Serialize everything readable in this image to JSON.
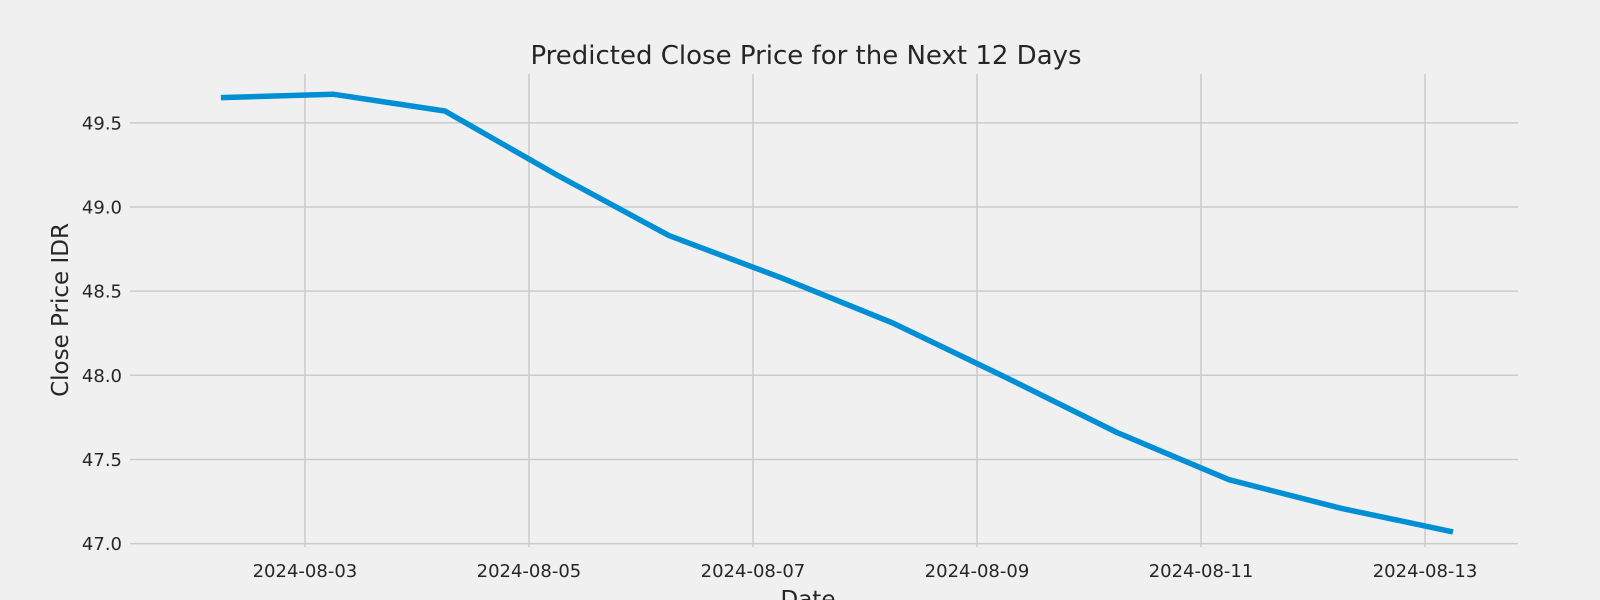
{
  "chart_data": {
    "type": "line",
    "title": "Predicted Close Price for the Next 12 Days",
    "xlabel": "Date",
    "ylabel": "Close Price IDR",
    "x": [
      "2024-08-02",
      "2024-08-03",
      "2024-08-04",
      "2024-08-05",
      "2024-08-06",
      "2024-08-07",
      "2024-08-08",
      "2024-08-09",
      "2024-08-10",
      "2024-08-11",
      "2024-08-12",
      "2024-08-13"
    ],
    "series": [
      {
        "values": [
          49.65,
          49.67,
          49.57,
          49.19,
          48.83,
          48.58,
          48.31,
          47.99,
          47.66,
          47.38,
          47.21,
          47.07
        ],
        "color": "#008fd5"
      }
    ],
    "xticks": [
      "2024-08-03",
      "2024-08-05",
      "2024-08-07",
      "2024-08-09",
      "2024-08-11",
      "2024-08-13"
    ],
    "yticks": [
      "47.0",
      "47.5",
      "48.0",
      "48.5",
      "49.0",
      "49.5"
    ],
    "xlim": [
      "2024-08-01T10:31:12",
      "2024-08-13T19:55:12"
    ],
    "ylim": [
      46.98,
      49.79
    ],
    "grid": true,
    "background": "#f0f0f0",
    "grid_color": "#cbcbcb"
  }
}
